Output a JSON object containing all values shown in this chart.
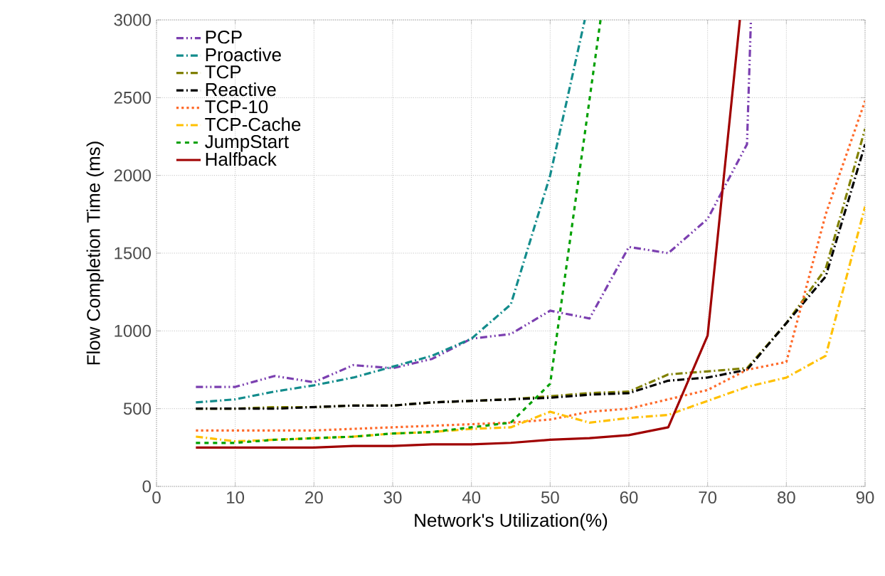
{
  "chart_data": {
    "type": "line",
    "xlabel": "Network's Utilization(%)",
    "ylabel": "Flow Completion Time (ms)",
    "xlim": [
      0,
      90
    ],
    "ylim": [
      0,
      3000
    ],
    "xticks": [
      0,
      10,
      20,
      30,
      40,
      50,
      60,
      70,
      80,
      90
    ],
    "yticks": [
      0,
      500,
      1000,
      1500,
      2000,
      2500,
      3000
    ],
    "grid": true,
    "legend": "top left",
    "marker": "none",
    "series": [
      {
        "name": "PCP",
        "color": "#7b3fb0",
        "line_style": "dashdotdotted",
        "x": [
          5,
          10,
          15,
          20,
          25,
          30,
          35,
          40,
          45,
          50,
          55,
          60,
          65,
          70,
          75,
          75.5
        ],
        "values": [
          640,
          640,
          710,
          670,
          780,
          760,
          820,
          950,
          980,
          1130,
          1080,
          1540,
          1500,
          1720,
          2200,
          3000
        ]
      },
      {
        "name": "Proactive",
        "color": "#138c8c",
        "line_style": "dashdotted",
        "x": [
          5,
          10,
          15,
          20,
          25,
          30,
          35,
          40,
          45,
          50,
          54.4
        ],
        "values": [
          540,
          560,
          610,
          650,
          700,
          770,
          840,
          950,
          1170,
          2000,
          3000
        ]
      },
      {
        "name": "TCP",
        "color": "#808000",
        "line_style": "dashdotted",
        "x": [
          5,
          10,
          15,
          20,
          25,
          30,
          35,
          40,
          45,
          50,
          55,
          60,
          65,
          70,
          75,
          80,
          85,
          90
        ],
        "values": [
          500,
          500,
          510,
          510,
          520,
          520,
          540,
          550,
          560,
          580,
          600,
          610,
          720,
          740,
          760,
          1050,
          1400,
          2300
        ]
      },
      {
        "name": "Reactive",
        "color": "#000000",
        "line_style": "dashdotted",
        "x": [
          5,
          10,
          15,
          20,
          25,
          30,
          35,
          40,
          45,
          50,
          55,
          60,
          65,
          70,
          75,
          80,
          85,
          90
        ],
        "values": [
          500,
          500,
          500,
          510,
          520,
          520,
          540,
          550,
          560,
          570,
          590,
          600,
          680,
          700,
          750,
          1050,
          1350,
          2200
        ]
      },
      {
        "name": "TCP-10",
        "color": "#ff6a2a",
        "line_style": "dotted",
        "x": [
          5,
          10,
          15,
          20,
          25,
          30,
          35,
          40,
          45,
          50,
          55,
          60,
          65,
          70,
          75,
          80,
          85,
          90
        ],
        "values": [
          360,
          360,
          360,
          360,
          370,
          380,
          390,
          400,
          410,
          430,
          480,
          500,
          560,
          620,
          750,
          800,
          1750,
          2480
        ]
      },
      {
        "name": "TCP-Cache",
        "color": "#ffc000",
        "line_style": "dashdotted",
        "x": [
          5,
          10,
          15,
          20,
          25,
          30,
          35,
          40,
          45,
          50,
          55,
          60,
          65,
          70,
          75,
          80,
          85,
          90
        ],
        "values": [
          320,
          290,
          300,
          310,
          320,
          340,
          350,
          370,
          380,
          480,
          410,
          440,
          460,
          550,
          640,
          700,
          840,
          1800
        ]
      },
      {
        "name": "JumpStart",
        "color": "#00a000",
        "line_style": "dashed",
        "x": [
          5,
          10,
          15,
          20,
          25,
          30,
          35,
          40,
          45,
          50,
          56.4
        ],
        "values": [
          280,
          280,
          300,
          310,
          320,
          340,
          350,
          380,
          410,
          660,
          3000
        ]
      },
      {
        "name": "Halfback",
        "color": "#a00000",
        "line_style": "solid",
        "x": [
          5,
          10,
          15,
          20,
          25,
          30,
          35,
          40,
          45,
          50,
          55,
          60,
          65,
          70,
          74.1
        ],
        "values": [
          250,
          250,
          250,
          250,
          260,
          260,
          270,
          270,
          280,
          300,
          310,
          330,
          380,
          970,
          3000
        ]
      }
    ]
  }
}
